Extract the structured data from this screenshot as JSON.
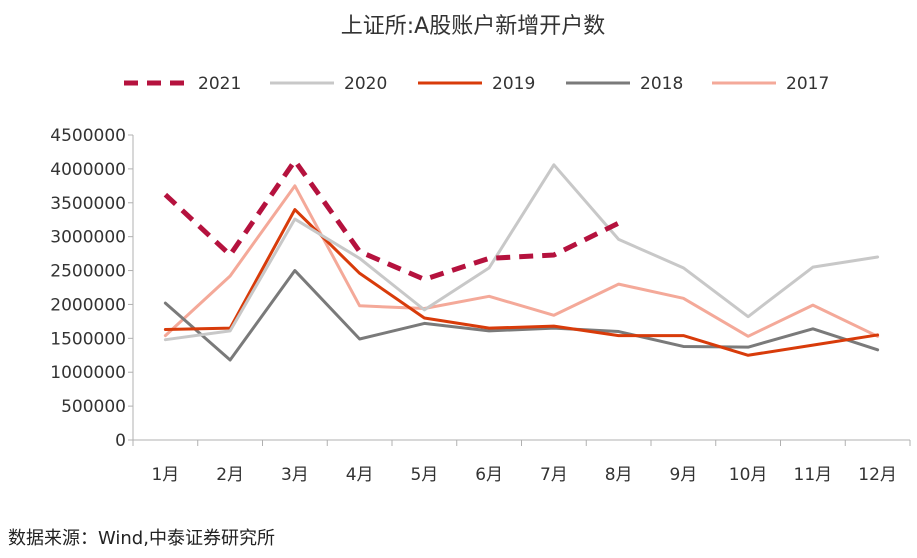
{
  "chart_data": {
    "type": "line",
    "title": "上证所:A股账户新增开户数",
    "xlabel": "",
    "ylabel": "",
    "categories": [
      "1月",
      "2月",
      "3月",
      "4月",
      "5月",
      "6月",
      "7月",
      "8月",
      "9月",
      "10月",
      "11月",
      "12月"
    ],
    "ylim": [
      0,
      4500000
    ],
    "yticks": [
      0,
      500000,
      1000000,
      1500000,
      2000000,
      2500000,
      3000000,
      3500000,
      4000000,
      4500000
    ],
    "ytick_labels": [
      "0",
      "500000",
      "1000000",
      "1500000",
      "2000000",
      "2500000",
      "3000000",
      "3500000",
      "4000000",
      "4500000"
    ],
    "grid": false,
    "legend_position": "top",
    "series": [
      {
        "name": "2021",
        "color": "#b5123e",
        "dashed": true,
        "values": [
          3620000,
          2730000,
          4120000,
          2780000,
          2370000,
          2680000,
          2730000,
          3200000,
          null,
          null,
          null,
          null
        ]
      },
      {
        "name": "2020",
        "color": "#c8c8c8",
        "dashed": false,
        "values": [
          1480000,
          1610000,
          3260000,
          2680000,
          1920000,
          2540000,
          4060000,
          2960000,
          2540000,
          1820000,
          2550000,
          2700000
        ]
      },
      {
        "name": "2019",
        "color": "#d83b0a",
        "dashed": false,
        "values": [
          1630000,
          1650000,
          3400000,
          2460000,
          1800000,
          1650000,
          1680000,
          1540000,
          1540000,
          1250000,
          1400000,
          1550000
        ]
      },
      {
        "name": "2018",
        "color": "#7a7a7a",
        "dashed": false,
        "values": [
          2020000,
          1180000,
          2500000,
          1490000,
          1720000,
          1610000,
          1650000,
          1600000,
          1380000,
          1370000,
          1640000,
          1330000
        ]
      },
      {
        "name": "2017",
        "color": "#f4a999",
        "dashed": false,
        "values": [
          1540000,
          2420000,
          3750000,
          1980000,
          1940000,
          2120000,
          1840000,
          2300000,
          2090000,
          1530000,
          1990000,
          1530000
        ]
      }
    ]
  },
  "source_note": "数据来源：Wind,中泰证券研究所"
}
